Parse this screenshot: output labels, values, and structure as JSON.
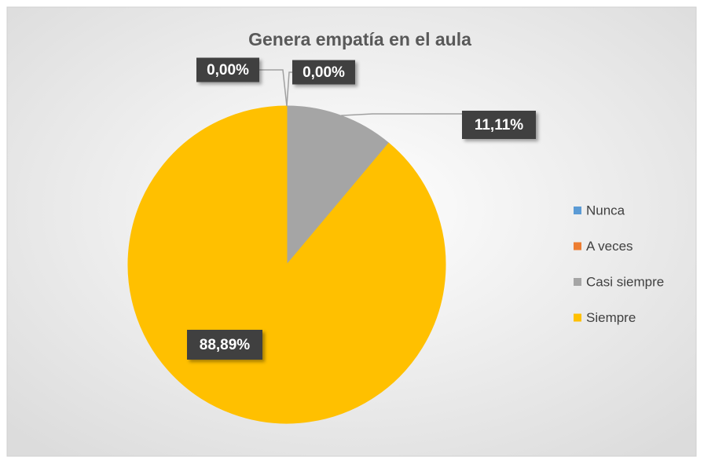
{
  "chart_data": {
    "type": "pie",
    "title": "Genera empatía en el aula",
    "categories": [
      "Nunca",
      "A veces",
      "Casi siempre",
      "Siempre"
    ],
    "values": [
      0,
      0,
      11.11,
      88.89
    ],
    "value_labels": [
      "0,00%",
      "0,00%",
      "11,11%",
      "88,89%"
    ],
    "colors": [
      "#5b9bd5",
      "#ed7d31",
      "#a5a5a5",
      "#ffc000"
    ],
    "legend": "right"
  }
}
